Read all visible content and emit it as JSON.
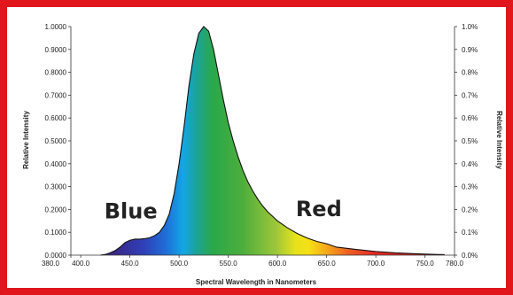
{
  "frame_color": "#e0161c",
  "chart_data": {
    "type": "area",
    "title": "",
    "xlabel": "Spectral Wavelength in Nanometers",
    "ylabel": "Relative Intensity",
    "y2label": "Relative Intensity",
    "xlim": [
      380,
      780
    ],
    "ylim": [
      0,
      1
    ],
    "y2lim": [
      0,
      1.0
    ],
    "grid": false,
    "x_ticks": [
      "380.0",
      "400.0",
      "450.0",
      "500.0",
      "550.0",
      "600.0",
      "650.0",
      "700.0",
      "750.0",
      "780.0"
    ],
    "y_ticks": [
      "0.0000",
      "0.1000",
      "0.2000",
      "0.3000",
      "0.4000",
      "0.5000",
      "0.6000",
      "0.7000",
      "0.8000",
      "0.9000",
      "1.0000"
    ],
    "y2_ticks": [
      "0.0%",
      "0.1%",
      "0.2%",
      "0.3%",
      "0.4%",
      "0.5%",
      "0.6%",
      "0.7%",
      "0.8%",
      "0.9%",
      "1.0%"
    ],
    "annotations": [
      {
        "text": "Blue",
        "x": 451,
        "y": 0.16
      },
      {
        "text": "Red",
        "x": 642,
        "y": 0.17
      }
    ],
    "series": [
      {
        "x": [
          420,
          425,
          430,
          435,
          440,
          445,
          450,
          455,
          460,
          465,
          470,
          475,
          480,
          485,
          490,
          495,
          500,
          505,
          510,
          515,
          520,
          525,
          530,
          535,
          540,
          545,
          550,
          555,
          560,
          565,
          570,
          575,
          580,
          585,
          590,
          595,
          600,
          610,
          620,
          630,
          640,
          650,
          660,
          680,
          700,
          720,
          740,
          760,
          770
        ],
        "values": [
          0.0,
          0.003,
          0.01,
          0.02,
          0.035,
          0.055,
          0.065,
          0.07,
          0.07,
          0.072,
          0.076,
          0.085,
          0.1,
          0.13,
          0.18,
          0.27,
          0.4,
          0.56,
          0.74,
          0.88,
          0.97,
          1.0,
          0.98,
          0.9,
          0.79,
          0.68,
          0.58,
          0.5,
          0.43,
          0.37,
          0.32,
          0.28,
          0.245,
          0.215,
          0.19,
          0.17,
          0.15,
          0.12,
          0.095,
          0.075,
          0.06,
          0.05,
          0.035,
          0.025,
          0.016,
          0.01,
          0.006,
          0.003,
          0.002
        ]
      }
    ]
  }
}
